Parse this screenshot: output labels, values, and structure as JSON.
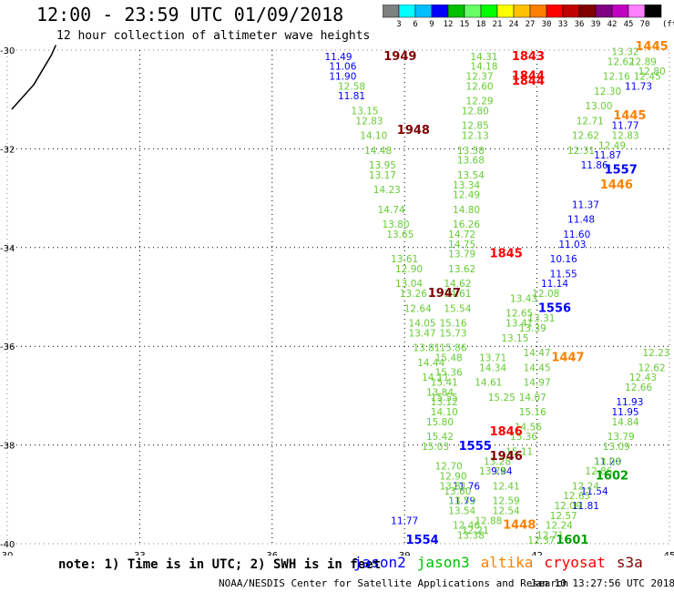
{
  "title": "12:00 - 23:59 UTC 01/09/2018",
  "subtitle": "12 hour collection of altimeter wave heights",
  "colorbar": {
    "colors": [
      "#808080",
      "#00ffff",
      "#00bfff",
      "#0000ff",
      "#00c000",
      "#66ff66",
      "#00ff00",
      "#ffff00",
      "#ffc000",
      "#ff8000",
      "#ff0000",
      "#c00000",
      "#800000",
      "#800080",
      "#c000c0",
      "#ff80ff",
      "#000000"
    ],
    "labels": [
      "3",
      "6",
      "9",
      "12",
      "15",
      "18",
      "21",
      "24",
      "27",
      "30",
      "33",
      "36",
      "39",
      "42",
      "45",
      "70"
    ],
    "unit": "(ft)"
  },
  "note": "note: 1) Time is in UTC; 2) SWH is in feet",
  "legend": [
    {
      "name": "jason2",
      "color": "#0000ff"
    },
    {
      "name": "jason3",
      "color": "#00c000"
    },
    {
      "name": "altika",
      "color": "#ff8000"
    },
    {
      "name": "cryosat",
      "color": "#ff0000"
    },
    {
      "name": "s3a",
      "color": "#800000"
    }
  ],
  "footer": {
    "credit": "NOAA/NESDIS Center for Satellite Applications and Research",
    "time": "Jan 10 13:27:56 UTC 2018"
  },
  "chart_data": {
    "type": "scatter",
    "xlim": [
      30,
      45
    ],
    "ylim": [
      -40,
      -30
    ],
    "x_ticks": [
      "30",
      "33",
      "36",
      "39",
      "42",
      "45"
    ],
    "y_ticks": [
      "-30",
      "-32",
      "-34",
      "-36",
      "-38",
      "-40"
    ],
    "grid": true,
    "pass_labels": [
      {
        "text": "1949",
        "x": 38.9,
        "y": -30.2,
        "color": "#800000"
      },
      {
        "text": "1948",
        "x": 39.2,
        "y": -31.7,
        "color": "#800000"
      },
      {
        "text": "1947",
        "x": 39.9,
        "y": -35.0,
        "color": "#800000"
      },
      {
        "text": "1946",
        "x": 41.3,
        "y": -38.3,
        "color": "#800000"
      },
      {
        "text": "1843",
        "x": 41.8,
        "y": -30.2,
        "color": "#ff0000"
      },
      {
        "text": "1844",
        "x": 41.8,
        "y": -30.6,
        "color": "#ff0000"
      },
      {
        "text": "1844",
        "x": 41.8,
        "y": -30.7,
        "color": "#ff0000"
      },
      {
        "text": "1845",
        "x": 41.3,
        "y": -34.2,
        "color": "#ff0000"
      },
      {
        "text": "1846",
        "x": 41.3,
        "y": -37.8,
        "color": "#ff0000"
      },
      {
        "text": "1445",
        "x": 44.6,
        "y": -30.0,
        "color": "#ff8000"
      },
      {
        "text": "1445",
        "x": 44.1,
        "y": -31.4,
        "color": "#ff8000"
      },
      {
        "text": "1446",
        "x": 43.8,
        "y": -32.8,
        "color": "#ff8000"
      },
      {
        "text": "1447",
        "x": 42.7,
        "y": -36.3,
        "color": "#ff8000"
      },
      {
        "text": "1448",
        "x": 41.6,
        "y": -39.7,
        "color": "#ff8000"
      },
      {
        "text": "1557",
        "x": 43.9,
        "y": -32.5,
        "color": "#0000ff"
      },
      {
        "text": "1556",
        "x": 42.4,
        "y": -35.3,
        "color": "#0000ff"
      },
      {
        "text": "1555",
        "x": 40.6,
        "y": -38.1,
        "color": "#0000ff"
      },
      {
        "text": "1554",
        "x": 39.4,
        "y": -40.0,
        "color": "#0000ff"
      },
      {
        "text": "1602",
        "x": 43.7,
        "y": -38.7,
        "color": "#00a000"
      },
      {
        "text": "1601",
        "x": 42.8,
        "y": -40.0,
        "color": "#00a000"
      }
    ],
    "series": [
      {
        "name": "jason2",
        "color": "#0000ff",
        "points": [
          {
            "x": 37.5,
            "y": -30.2,
            "v": 11.49
          },
          {
            "x": 37.6,
            "y": -30.4,
            "v": 11.06
          },
          {
            "x": 37.6,
            "y": -30.6,
            "v": 11.9
          },
          {
            "x": 37.8,
            "y": -31.0,
            "v": 11.81
          },
          {
            "x": 39.0,
            "y": -39.6,
            "v": 11.77
          },
          {
            "x": 40.3,
            "y": -39.2,
            "v": 11.79
          },
          {
            "x": 40.4,
            "y": -38.9,
            "v": 11.76
          },
          {
            "x": 41.2,
            "y": -38.6,
            "v": 9.94
          },
          {
            "x": 44.3,
            "y": -30.8,
            "v": 11.73
          },
          {
            "x": 44.0,
            "y": -31.6,
            "v": 11.77
          },
          {
            "x": 43.6,
            "y": -32.2,
            "v": 11.87
          },
          {
            "x": 43.3,
            "y": -32.4,
            "v": 11.86
          },
          {
            "x": 43.1,
            "y": -33.2,
            "v": 11.37
          },
          {
            "x": 43.0,
            "y": -33.5,
            "v": 11.48
          },
          {
            "x": 42.9,
            "y": -33.8,
            "v": 11.6
          },
          {
            "x": 42.8,
            "y": -34.0,
            "v": 11.03
          },
          {
            "x": 42.6,
            "y": -34.3,
            "v": 10.16
          },
          {
            "x": 42.6,
            "y": -34.6,
            "v": 11.55
          },
          {
            "x": 42.4,
            "y": -34.8,
            "v": 11.14
          },
          {
            "x": 44.1,
            "y": -37.2,
            "v": 11.93
          },
          {
            "x": 44.0,
            "y": -37.4,
            "v": 11.95
          },
          {
            "x": 43.6,
            "y": -38.4,
            "v": 11.2
          },
          {
            "x": 43.3,
            "y": -39.0,
            "v": 11.54
          },
          {
            "x": 43.1,
            "y": -39.3,
            "v": 11.81
          }
        ]
      },
      {
        "name": "jason3",
        "color": "#66cc33",
        "points": [
          {
            "x": 37.8,
            "y": -30.8,
            "v": 12.58
          },
          {
            "x": 38.1,
            "y": -31.3,
            "v": 13.15
          },
          {
            "x": 38.2,
            "y": -31.5,
            "v": 12.83
          },
          {
            "x": 38.3,
            "y": -31.8,
            "v": 14.1
          },
          {
            "x": 38.4,
            "y": -32.1,
            "v": 14.48
          },
          {
            "x": 38.5,
            "y": -32.4,
            "v": 13.95
          },
          {
            "x": 38.5,
            "y": -32.6,
            "v": 13.17
          },
          {
            "x": 38.6,
            "y": -32.9,
            "v": 14.23
          },
          {
            "x": 38.7,
            "y": -33.3,
            "v": 14.74
          },
          {
            "x": 38.8,
            "y": -33.6,
            "v": 13.8
          },
          {
            "x": 38.9,
            "y": -33.8,
            "v": 13.65
          },
          {
            "x": 39.0,
            "y": -34.3,
            "v": 13.61
          },
          {
            "x": 39.1,
            "y": -34.5,
            "v": 12.9
          },
          {
            "x": 39.1,
            "y": -34.8,
            "v": 13.04
          },
          {
            "x": 39.2,
            "y": -35.0,
            "v": 13.26
          },
          {
            "x": 39.3,
            "y": -35.3,
            "v": 12.64
          },
          {
            "x": 39.4,
            "y": -35.6,
            "v": 14.05
          },
          {
            "x": 39.4,
            "y": -35.8,
            "v": 13.47
          },
          {
            "x": 39.5,
            "y": -36.1,
            "v": 13.81
          },
          {
            "x": 39.6,
            "y": -36.4,
            "v": 14.44
          },
          {
            "x": 39.7,
            "y": -36.7,
            "v": 14.11
          },
          {
            "x": 39.8,
            "y": -37.0,
            "v": 13.84
          },
          {
            "x": 39.9,
            "y": -37.2,
            "v": 13.12
          },
          {
            "x": 40.0,
            "y": -38.5,
            "v": 12.7
          },
          {
            "x": 40.1,
            "y": -38.7,
            "v": 12.9
          },
          {
            "x": 40.1,
            "y": -38.9,
            "v": 13.81
          },
          {
            "x": 40.2,
            "y": -39.0,
            "v": 13.6
          },
          {
            "x": 40.3,
            "y": -39.2,
            "v": 13.53
          },
          {
            "x": 40.3,
            "y": -39.4,
            "v": 13.54
          },
          {
            "x": 40.4,
            "y": -39.7,
            "v": 12.46
          },
          {
            "x": 40.5,
            "y": -39.9,
            "v": 13.38
          },
          {
            "x": 41.0,
            "y": -38.6,
            "v": 13.78
          },
          {
            "x": 41.1,
            "y": -38.4,
            "v": 13.28
          },
          {
            "x": 41.3,
            "y": -38.9,
            "v": 12.41
          },
          {
            "x": 40.8,
            "y": -30.2,
            "v": 14.31
          },
          {
            "x": 40.8,
            "y": -30.4,
            "v": 14.18
          },
          {
            "x": 40.7,
            "y": -30.6,
            "v": 12.37
          },
          {
            "x": 40.7,
            "y": -30.8,
            "v": 12.6
          },
          {
            "x": 40.7,
            "y": -31.1,
            "v": 12.29
          },
          {
            "x": 40.6,
            "y": -31.3,
            "v": 12.8
          },
          {
            "x": 40.6,
            "y": -31.6,
            "v": 12.85
          },
          {
            "x": 40.6,
            "y": -31.8,
            "v": 12.13
          },
          {
            "x": 40.5,
            "y": -32.1,
            "v": 13.58
          },
          {
            "x": 40.5,
            "y": -32.3,
            "v": 13.68
          },
          {
            "x": 40.5,
            "y": -32.6,
            "v": 13.54
          },
          {
            "x": 40.4,
            "y": -32.8,
            "v": 13.34
          },
          {
            "x": 40.4,
            "y": -33.0,
            "v": 12.49
          },
          {
            "x": 40.4,
            "y": -33.3,
            "v": 14.8
          },
          {
            "x": 40.4,
            "y": -33.6,
            "v": 16.26
          },
          {
            "x": 40.3,
            "y": -33.8,
            "v": 14.72
          },
          {
            "x": 40.3,
            "y": -34.0,
            "v": 14.75
          },
          {
            "x": 40.3,
            "y": -34.2,
            "v": 13.79
          },
          {
            "x": 40.3,
            "y": -34.5,
            "v": 13.62
          },
          {
            "x": 40.2,
            "y": -34.8,
            "v": 14.62
          },
          {
            "x": 40.2,
            "y": -35.0,
            "v": 14.61
          },
          {
            "x": 40.2,
            "y": -35.3,
            "v": 15.54
          },
          {
            "x": 40.1,
            "y": -35.6,
            "v": 15.16
          },
          {
            "x": 40.1,
            "y": -35.8,
            "v": 15.73
          },
          {
            "x": 40.1,
            "y": -36.1,
            "v": 15.86
          },
          {
            "x": 40.0,
            "y": -36.3,
            "v": 15.48
          },
          {
            "x": 40.0,
            "y": -36.6,
            "v": 15.36
          },
          {
            "x": 39.9,
            "y": -36.8,
            "v": 15.41
          },
          {
            "x": 39.9,
            "y": -37.1,
            "v": 15.55
          },
          {
            "x": 39.9,
            "y": -37.4,
            "v": 14.1
          },
          {
            "x": 39.8,
            "y": -37.6,
            "v": 15.8
          },
          {
            "x": 39.8,
            "y": -37.9,
            "v": 15.42
          },
          {
            "x": 39.7,
            "y": -38.1,
            "v": 15.03
          },
          {
            "x": 41.0,
            "y": -36.3,
            "v": 13.71
          },
          {
            "x": 41.0,
            "y": -36.5,
            "v": 14.34
          },
          {
            "x": 40.9,
            "y": -36.8,
            "v": 14.61
          },
          {
            "x": 41.2,
            "y": -37.1,
            "v": 15.25
          },
          {
            "x": 41.7,
            "y": -35.1,
            "v": 13.43
          },
          {
            "x": 41.6,
            "y": -35.4,
            "v": 12.65
          },
          {
            "x": 41.6,
            "y": -35.6,
            "v": 13.41
          },
          {
            "x": 41.5,
            "y": -35.9,
            "v": 13.15
          },
          {
            "x": 42.0,
            "y": -36.2,
            "v": 14.47
          },
          {
            "x": 42.0,
            "y": -36.5,
            "v": 14.45
          },
          {
            "x": 42.0,
            "y": -36.8,
            "v": 14.97
          },
          {
            "x": 41.9,
            "y": -37.1,
            "v": 14.07
          },
          {
            "x": 41.9,
            "y": -37.4,
            "v": 15.16
          },
          {
            "x": 41.8,
            "y": -37.7,
            "v": 14.56
          },
          {
            "x": 41.7,
            "y": -37.9,
            "v": 15.36
          },
          {
            "x": 41.6,
            "y": -38.2,
            "v": 15.11
          },
          {
            "x": 42.2,
            "y": -35.0,
            "v": 12.08
          },
          {
            "x": 42.1,
            "y": -35.5,
            "v": 13.31
          },
          {
            "x": 41.9,
            "y": -35.7,
            "v": 13.39
          },
          {
            "x": 41.3,
            "y": -39.2,
            "v": 12.59
          },
          {
            "x": 41.3,
            "y": -39.4,
            "v": 12.54
          },
          {
            "x": 40.9,
            "y": -39.6,
            "v": 12.88
          },
          {
            "x": 40.6,
            "y": -39.8,
            "v": 12.21
          },
          {
            "x": 44.0,
            "y": -30.1,
            "v": 13.32
          },
          {
            "x": 43.9,
            "y": -30.3,
            "v": 12.62
          },
          {
            "x": 43.8,
            "y": -30.6,
            "v": 12.16
          },
          {
            "x": 43.6,
            "y": -30.9,
            "v": 12.3
          },
          {
            "x": 43.4,
            "y": -31.2,
            "v": 13.0
          },
          {
            "x": 43.2,
            "y": -31.5,
            "v": 12.71
          },
          {
            "x": 43.1,
            "y": -31.8,
            "v": 12.62
          },
          {
            "x": 43.0,
            "y": -32.1,
            "v": 12.31
          },
          {
            "x": 44.5,
            "y": -30.6,
            "v": 12.45
          },
          {
            "x": 44.4,
            "y": -30.3,
            "v": 12.89
          },
          {
            "x": 44.6,
            "y": -30.5,
            "v": 12.8
          },
          {
            "x": 44.0,
            "y": -31.8,
            "v": 12.83
          },
          {
            "x": 43.7,
            "y": -32.0,
            "v": 12.49
          },
          {
            "x": 44.7,
            "y": -36.2,
            "v": 12.23
          },
          {
            "x": 44.6,
            "y": -36.5,
            "v": 12.62
          },
          {
            "x": 44.4,
            "y": -36.7,
            "v": 12.43
          },
          {
            "x": 44.3,
            "y": -36.9,
            "v": 12.66
          },
          {
            "x": 44.0,
            "y": -37.6,
            "v": 14.84
          },
          {
            "x": 43.9,
            "y": -37.9,
            "v": 13.79
          },
          {
            "x": 43.8,
            "y": -38.1,
            "v": 13.09
          },
          {
            "x": 43.6,
            "y": -38.4,
            "v": 13.08
          },
          {
            "x": 43.4,
            "y": -38.6,
            "v": 12.86
          },
          {
            "x": 43.1,
            "y": -38.9,
            "v": 12.24
          },
          {
            "x": 42.9,
            "y": -39.1,
            "v": 12.65
          },
          {
            "x": 42.7,
            "y": -39.3,
            "v": 12.09
          },
          {
            "x": 42.6,
            "y": -39.5,
            "v": 12.57
          },
          {
            "x": 42.5,
            "y": -39.7,
            "v": 12.24
          },
          {
            "x": 42.3,
            "y": -39.9,
            "v": 12.71
          },
          {
            "x": 42.1,
            "y": -40.0,
            "v": 12.37
          }
        ]
      }
    ],
    "track": [
      [
        30.1,
        -31.2
      ],
      [
        30.3,
        -31.0
      ],
      [
        30.6,
        -30.7
      ],
      [
        30.8,
        -30.4
      ],
      [
        31.0,
        -30.1
      ],
      [
        31.1,
        -29.9
      ]
    ]
  }
}
